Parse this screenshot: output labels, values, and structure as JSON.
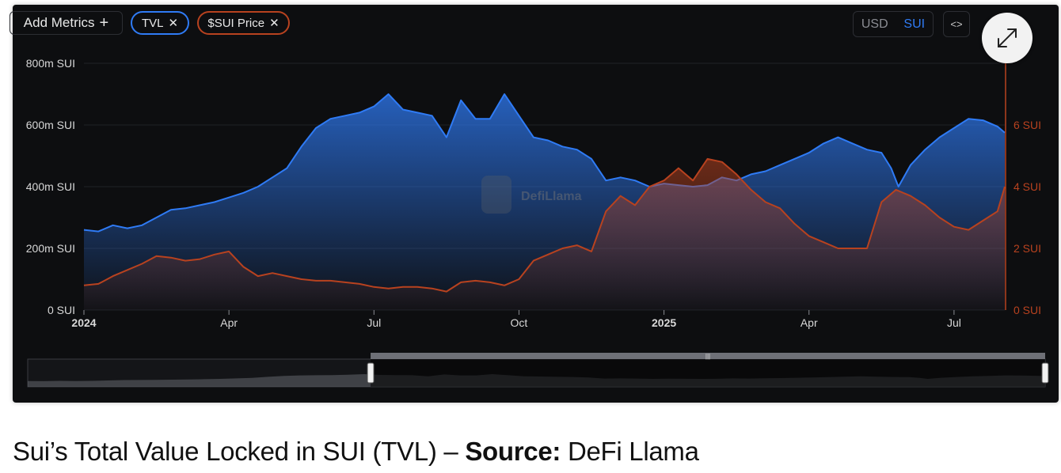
{
  "toolbar": {
    "add_metrics_label": "Add Metrics",
    "add_icon": "+",
    "tvl_pill_label": "TVL",
    "price_pill_label": "$SUI Price",
    "remove_icon": "✕",
    "unit_usd": "USD",
    "unit_sui": "SUI",
    "embed_icon": "<>"
  },
  "watermark": "DefiLlama",
  "caption": {
    "prefix": "Sui’s Total Value Locked in SUI (TVL) – ",
    "source_label": "Source:",
    "source_name": " DeFi Llama"
  },
  "colors": {
    "tvl": "#2f7bf5",
    "price": "#b8421f",
    "background": "#0d0e10",
    "grid": "#1f2126"
  },
  "chart_data": {
    "type": "area",
    "x_ticks": [
      {
        "label": "2024",
        "month": 0,
        "bold": true
      },
      {
        "label": "Apr",
        "month": 3,
        "bold": false
      },
      {
        "label": "Jul",
        "month": 6,
        "bold": false
      },
      {
        "label": "Oct",
        "month": 9,
        "bold": false
      },
      {
        "label": "2025",
        "month": 12,
        "bold": true
      },
      {
        "label": "Apr",
        "month": 15,
        "bold": false
      },
      {
        "label": "Jul",
        "month": 18,
        "bold": false
      }
    ],
    "y_left": {
      "ticks": [
        "0 SUI",
        "200m SUI",
        "400m SUI",
        "600m SUI",
        "800m SUI"
      ],
      "values": [
        0,
        200,
        400,
        600,
        800
      ],
      "ylim": [
        0,
        800
      ]
    },
    "y_right": {
      "ticks": [
        "0 SUI",
        "2 SUI",
        "4 SUI",
        "6 SUI"
      ],
      "values": [
        0,
        2,
        4,
        6
      ],
      "ylim": [
        0,
        8
      ]
    },
    "series": [
      {
        "name": "TVL",
        "axis": "left",
        "points": [
          [
            0.0,
            260
          ],
          [
            0.3,
            255
          ],
          [
            0.6,
            275
          ],
          [
            0.9,
            265
          ],
          [
            1.2,
            275
          ],
          [
            1.5,
            300
          ],
          [
            1.8,
            325
          ],
          [
            2.1,
            330
          ],
          [
            2.4,
            340
          ],
          [
            2.7,
            350
          ],
          [
            3.0,
            365
          ],
          [
            3.3,
            380
          ],
          [
            3.6,
            400
          ],
          [
            3.9,
            430
          ],
          [
            4.2,
            460
          ],
          [
            4.5,
            530
          ],
          [
            4.8,
            590
          ],
          [
            5.1,
            620
          ],
          [
            5.4,
            630
          ],
          [
            5.7,
            640
          ],
          [
            6.0,
            660
          ],
          [
            6.3,
            700
          ],
          [
            6.6,
            650
          ],
          [
            6.9,
            640
          ],
          [
            7.2,
            630
          ],
          [
            7.5,
            560
          ],
          [
            7.8,
            680
          ],
          [
            8.1,
            620
          ],
          [
            8.4,
            620
          ],
          [
            8.7,
            700
          ],
          [
            9.0,
            630
          ],
          [
            9.3,
            560
          ],
          [
            9.6,
            550
          ],
          [
            9.9,
            530
          ],
          [
            10.2,
            520
          ],
          [
            10.5,
            490
          ],
          [
            10.8,
            420
          ],
          [
            11.1,
            430
          ],
          [
            11.4,
            420
          ],
          [
            11.7,
            400
          ],
          [
            12.0,
            410
          ],
          [
            12.3,
            405
          ],
          [
            12.6,
            400
          ],
          [
            12.9,
            405
          ],
          [
            13.2,
            430
          ],
          [
            13.5,
            420
          ],
          [
            13.8,
            440
          ],
          [
            14.1,
            450
          ],
          [
            14.4,
            470
          ],
          [
            14.7,
            490
          ],
          [
            15.0,
            510
          ],
          [
            15.3,
            540
          ],
          [
            15.6,
            560
          ],
          [
            15.9,
            540
          ],
          [
            16.2,
            520
          ],
          [
            16.5,
            510
          ],
          [
            16.7,
            460
          ],
          [
            16.85,
            400
          ],
          [
            17.1,
            470
          ],
          [
            17.4,
            520
          ],
          [
            17.7,
            560
          ],
          [
            18.0,
            590
          ],
          [
            18.3,
            620
          ],
          [
            18.6,
            615
          ],
          [
            18.9,
            595
          ],
          [
            19.05,
            575
          ]
        ]
      },
      {
        "name": "$SUI Price",
        "axis": "right",
        "points": [
          [
            0.0,
            0.8
          ],
          [
            0.3,
            0.85
          ],
          [
            0.6,
            1.1
          ],
          [
            0.9,
            1.3
          ],
          [
            1.2,
            1.5
          ],
          [
            1.5,
            1.75
          ],
          [
            1.8,
            1.7
          ],
          [
            2.1,
            1.6
          ],
          [
            2.4,
            1.65
          ],
          [
            2.7,
            1.8
          ],
          [
            3.0,
            1.9
          ],
          [
            3.3,
            1.4
          ],
          [
            3.6,
            1.1
          ],
          [
            3.9,
            1.2
          ],
          [
            4.2,
            1.1
          ],
          [
            4.5,
            1.0
          ],
          [
            4.8,
            0.95
          ],
          [
            5.1,
            0.95
          ],
          [
            5.4,
            0.9
          ],
          [
            5.7,
            0.85
          ],
          [
            6.0,
            0.75
          ],
          [
            6.3,
            0.7
          ],
          [
            6.6,
            0.75
          ],
          [
            6.9,
            0.75
          ],
          [
            7.2,
            0.7
          ],
          [
            7.5,
            0.6
          ],
          [
            7.8,
            0.9
          ],
          [
            8.1,
            0.95
          ],
          [
            8.4,
            0.9
          ],
          [
            8.7,
            0.8
          ],
          [
            9.0,
            1.0
          ],
          [
            9.3,
            1.6
          ],
          [
            9.6,
            1.8
          ],
          [
            9.9,
            2.0
          ],
          [
            10.2,
            2.1
          ],
          [
            10.5,
            1.9
          ],
          [
            10.8,
            3.2
          ],
          [
            11.1,
            3.7
          ],
          [
            11.4,
            3.4
          ],
          [
            11.7,
            4.0
          ],
          [
            12.0,
            4.2
          ],
          [
            12.3,
            4.6
          ],
          [
            12.6,
            4.2
          ],
          [
            12.9,
            4.9
          ],
          [
            13.2,
            4.8
          ],
          [
            13.5,
            4.4
          ],
          [
            13.8,
            3.9
          ],
          [
            14.1,
            3.5
          ],
          [
            14.4,
            3.3
          ],
          [
            14.7,
            2.8
          ],
          [
            15.0,
            2.4
          ],
          [
            15.3,
            2.2
          ],
          [
            15.6,
            2.0
          ],
          [
            15.9,
            2.0
          ],
          [
            16.2,
            2.0
          ],
          [
            16.5,
            3.5
          ],
          [
            16.8,
            3.9
          ],
          [
            17.1,
            3.7
          ],
          [
            17.4,
            3.4
          ],
          [
            17.7,
            3.0
          ],
          [
            18.0,
            2.7
          ],
          [
            18.3,
            2.6
          ],
          [
            18.6,
            2.9
          ],
          [
            18.9,
            3.2
          ],
          [
            19.05,
            4.0
          ]
        ]
      }
    ],
    "navigator": {
      "selection_start": 0.337,
      "selection_end": 1.0
    },
    "legend": "top-left"
  }
}
